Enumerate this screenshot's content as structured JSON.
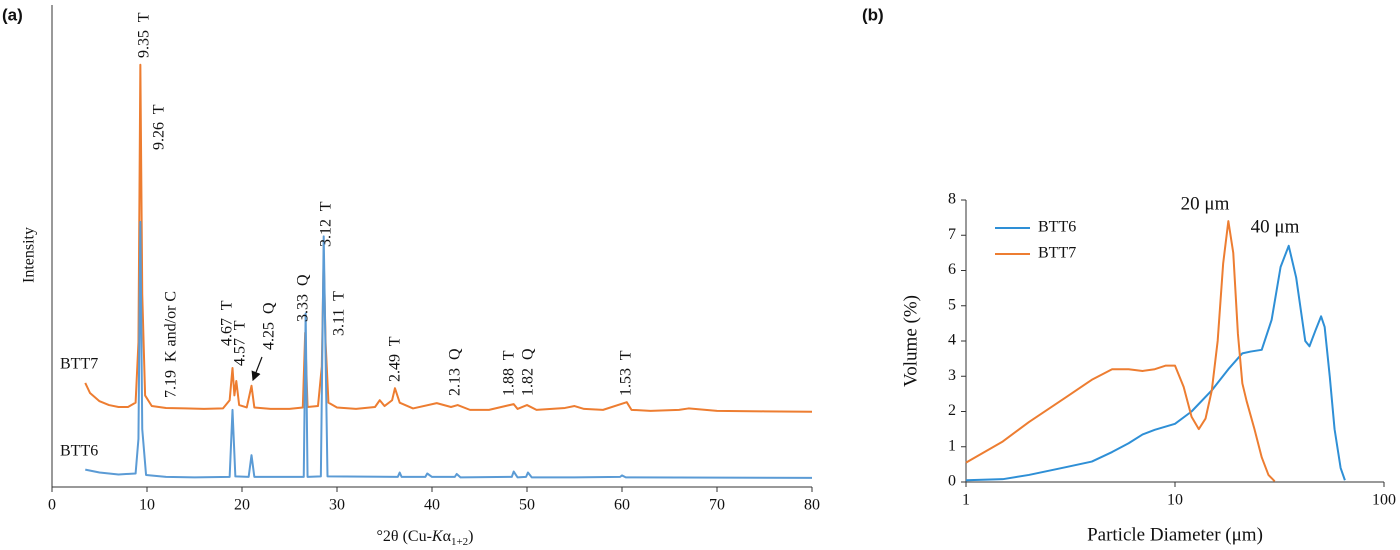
{
  "chart_data": [
    {
      "type": "line",
      "panel": "(a)",
      "ylabel": "Intensity",
      "xlabel": [
        "°2θ (Cu-",
        "K",
        "α",
        "1+2",
        ")"
      ],
      "xlim": [
        0,
        80
      ],
      "xticks": [
        0,
        10,
        20,
        30,
        40,
        50,
        60,
        70,
        80
      ],
      "ylim": [
        0,
        100
      ],
      "series": [
        {
          "name": "BTT7",
          "color": "#ed7d31",
          "x": [
            3.5,
            4,
            5,
            6,
            7,
            8,
            8.8,
            9.1,
            9.3,
            9.5,
            9.8,
            10.5,
            12,
            14,
            16,
            18,
            18.7,
            19,
            19.2,
            19.4,
            19.7,
            20.5,
            21,
            21.3,
            23,
            25,
            26.4,
            26.65,
            26.9,
            28,
            28.4,
            28.6,
            28.8,
            29.1,
            30,
            32,
            34,
            34.5,
            35,
            35.8,
            36.1,
            36.6,
            38,
            40.5,
            42,
            42.7,
            44,
            46,
            48.6,
            49,
            50,
            51,
            54,
            55,
            56,
            58,
            60.5,
            61,
            63,
            66,
            67,
            70,
            75,
            80
          ],
          "values": [
            21.6,
            19.5,
            17.8,
            17,
            16.6,
            16.6,
            17.5,
            30,
            87.6,
            40,
            19,
            16.8,
            16.4,
            16.3,
            16.2,
            16.3,
            18,
            24.7,
            19,
            22,
            17,
            16.5,
            21,
            16.5,
            16.2,
            16.2,
            16.5,
            32,
            16.6,
            16.8,
            25,
            47.7,
            30,
            17.5,
            16.5,
            16.2,
            16.6,
            18,
            16.8,
            18,
            20.5,
            17.5,
            16.3,
            17.4,
            16.6,
            17,
            16,
            16,
            17.2,
            16.2,
            17,
            16,
            16.4,
            16.8,
            16.2,
            16,
            17.6,
            16,
            15.8,
            16,
            16.3,
            15.8,
            15.7,
            15.6
          ]
        },
        {
          "name": "BTT6",
          "color": "#5b9bd5",
          "x": [
            3.5,
            5,
            7,
            8.8,
            9.1,
            9.3,
            9.5,
            9.9,
            12,
            15,
            18.7,
            19,
            19.3,
            20.7,
            21,
            21.3,
            26.5,
            26.7,
            26.9,
            28.3,
            28.6,
            29,
            36.4,
            36.6,
            36.8,
            39.3,
            39.5,
            40,
            42.4,
            42.6,
            43,
            48.4,
            48.6,
            49,
            49.9,
            50.1,
            50.5,
            55,
            59.8,
            60,
            60.4,
            80
          ],
          "values": [
            3.6,
            3,
            2.6,
            2.8,
            10,
            55,
            12,
            2.5,
            2.1,
            2,
            2.1,
            16,
            2.2,
            2.1,
            6.6,
            2.1,
            2.1,
            36,
            2.1,
            2.2,
            52,
            2.2,
            2.1,
            3,
            2.1,
            2.1,
            2.8,
            2.1,
            2.1,
            2.7,
            2,
            2.1,
            3.2,
            2,
            2.1,
            3,
            2,
            2,
            2.1,
            2.4,
            2,
            1.9
          ]
        }
      ],
      "annotations": [
        "9.35  T",
        "9.26  T",
        "7.19  K and/or C",
        "4.67  T",
        "4.57  T",
        "4.25  Q",
        "3.33  Q",
        "3.12  T",
        "3.11  T",
        "2.49  T",
        "2.13  Q",
        "1.88  T",
        "1.82  Q",
        "1.53  T"
      ]
    },
    {
      "type": "line",
      "panel": "(b)",
      "xlabel": "Particle Diameter (μm)",
      "ylabel": "Volume (%)",
      "xscale": "log",
      "xlim": [
        1,
        100
      ],
      "xticks": [
        1,
        10,
        100
      ],
      "ylim": [
        0,
        8
      ],
      "yticks": [
        0,
        1,
        2,
        3,
        4,
        5,
        6,
        7,
        8
      ],
      "legend": "upper left",
      "series": [
        {
          "name": "BTT6",
          "color": "#2e8fd6",
          "x": [
            1,
            1.5,
            2,
            3,
            4,
            5,
            6,
            7,
            8,
            10,
            12,
            15,
            18,
            21,
            23,
            26,
            29,
            32,
            35,
            38,
            42,
            44,
            47,
            50,
            52,
            55,
            58,
            62,
            65
          ],
          "values": [
            0.05,
            0.08,
            0.2,
            0.42,
            0.58,
            0.85,
            1.1,
            1.35,
            1.48,
            1.65,
            2,
            2.6,
            3.2,
            3.65,
            3.7,
            3.75,
            4.6,
            6.1,
            6.7,
            5.8,
            4,
            3.85,
            4.3,
            4.7,
            4.4,
            3,
            1.5,
            0.4,
            0.05
          ]
        },
        {
          "name": "BTT7",
          "color": "#ed7d31",
          "x": [
            1,
            1.5,
            2,
            3,
            4,
            5,
            6,
            7,
            8,
            9,
            10,
            11,
            12,
            13,
            14,
            15,
            16,
            17,
            18,
            19,
            20,
            21,
            22,
            24,
            26,
            28,
            30
          ],
          "values": [
            0.55,
            1.15,
            1.7,
            2.4,
            2.9,
            3.2,
            3.2,
            3.15,
            3.2,
            3.3,
            3.3,
            2.7,
            1.85,
            1.5,
            1.8,
            2.6,
            4,
            6.2,
            7.4,
            6.5,
            4.2,
            2.8,
            2.3,
            1.5,
            0.7,
            0.2,
            0.02
          ]
        }
      ],
      "annotations": [
        "20 μm",
        "40 μm"
      ]
    }
  ]
}
